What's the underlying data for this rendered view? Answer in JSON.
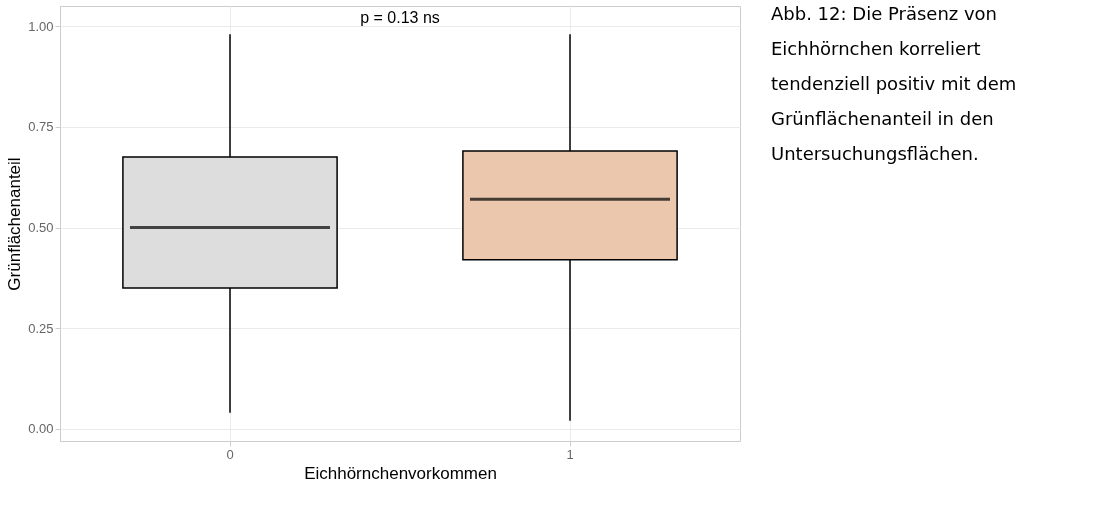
{
  "chart_data": {
    "type": "box",
    "xlabel": "Eichhörnchenvorkommen",
    "ylabel": "Grünflächenanteil",
    "categories": [
      "0",
      "1"
    ],
    "boxes": [
      {
        "low": 0.04,
        "q1": 0.35,
        "median": 0.5,
        "q3": 0.675,
        "high": 0.98
      },
      {
        "low": 0.02,
        "q1": 0.42,
        "median": 0.57,
        "q3": 0.69,
        "high": 0.98
      }
    ],
    "colors": [
      "#dddddd",
      "#ebc8ad"
    ],
    "ylim": [
      -0.03,
      1.05
    ],
    "yticks": [
      {
        "value": 0,
        "label": "0.00"
      },
      {
        "value": 0.25,
        "label": "0.25"
      },
      {
        "value": 0.5,
        "label": "0.50"
      },
      {
        "value": 0.75,
        "label": "0.75"
      },
      {
        "value": 1,
        "label": "1.00"
      }
    ],
    "grid": true,
    "annotations": [
      "p = 0.13     ns",
      "Abb. 12: Die Präsenz von Eichhörnchen korreliert tendenziell positiv mit dem Grünflächenanteil in den Untersuchungsflächen."
    ]
  }
}
